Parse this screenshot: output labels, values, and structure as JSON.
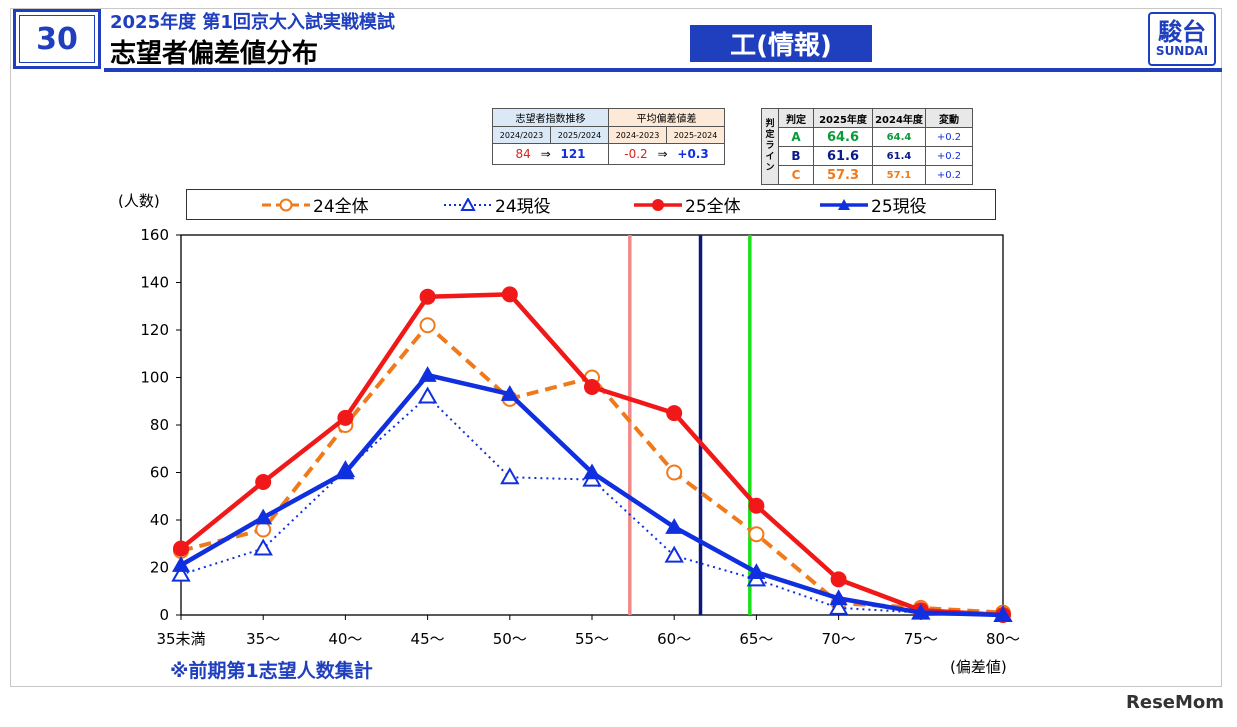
{
  "header": {
    "page_number": "30",
    "subtitle": "2025年度 第1回京大入試実戦模試",
    "title": "志望者偏差値分布",
    "department": "工(情報)",
    "logo_kanji": "駿台",
    "logo_text": "SUNDAI"
  },
  "index_table": {
    "head_left": "志望者指数推移",
    "head_right": "平均偏差値差",
    "sub": [
      "2024/2023",
      "2025/2024",
      "2024-2023",
      "2025-2024"
    ],
    "idx_prev": "84",
    "idx_cur": "121",
    "diff_prev": "-0.2",
    "diff_cur": "+0.3",
    "arrow": "⇒"
  },
  "judgement_table": {
    "line_label": "判定ライン",
    "headers": [
      "判定",
      "2025年度",
      "2024年度",
      "変動"
    ],
    "rows": [
      {
        "grade": "A",
        "y2025": "64.6",
        "y2024": "64.4",
        "change": "+0.2",
        "color": "#0a9a3a"
      },
      {
        "grade": "B",
        "y2025": "61.6",
        "y2024": "61.4",
        "change": "+0.2",
        "color": "#0b1a8a"
      },
      {
        "grade": "C",
        "y2025": "57.3",
        "y2024": "57.1",
        "change": "+0.2",
        "color": "#f07a1a"
      }
    ]
  },
  "legend": {
    "s1": "24全体",
    "s2": "24現役",
    "s3": "25全体",
    "s4": "25現役"
  },
  "labels": {
    "unit": "(人数)",
    "x_axis": "(偏差値)",
    "note": "※前期第1志望人数集計",
    "watermark": "ReseMom"
  },
  "chart_data": {
    "type": "line",
    "categories": [
      "35未満",
      "35〜",
      "40〜",
      "45〜",
      "50〜",
      "55〜",
      "60〜",
      "65〜",
      "70〜",
      "75〜",
      "80〜"
    ],
    "ylim": [
      0,
      160
    ],
    "yticks": [
      0,
      20,
      40,
      60,
      80,
      100,
      120,
      140,
      160
    ],
    "series": [
      {
        "name": "24全体",
        "values": [
          27,
          36,
          80,
          122,
          91,
          100,
          60,
          34,
          5,
          3,
          1
        ],
        "color": "#f07a1a",
        "style": "dashed",
        "marker": "circle-open"
      },
      {
        "name": "24現役",
        "values": [
          17,
          28,
          61,
          92,
          58,
          57,
          25,
          15,
          3,
          1,
          0
        ],
        "color": "#1030e0",
        "style": "dotted",
        "marker": "triangle-open"
      },
      {
        "name": "25全体",
        "values": [
          28,
          56,
          83,
          134,
          135,
          96,
          85,
          46,
          15,
          2,
          0
        ],
        "color": "#f01818",
        "style": "solid",
        "marker": "circle-filled"
      },
      {
        "name": "25現役",
        "values": [
          21,
          41,
          60,
          101,
          93,
          60,
          37,
          18,
          7,
          1,
          0
        ],
        "color": "#1030e0",
        "style": "solid",
        "marker": "triangle-filled"
      }
    ],
    "vlines": [
      {
        "label": "C",
        "x": 57.3,
        "color": "#f08a8a"
      },
      {
        "label": "B",
        "x": 61.6,
        "color": "#0b1a7a"
      },
      {
        "label": "A",
        "x": 64.6,
        "color": "#19e019"
      }
    ],
    "grid": false
  }
}
